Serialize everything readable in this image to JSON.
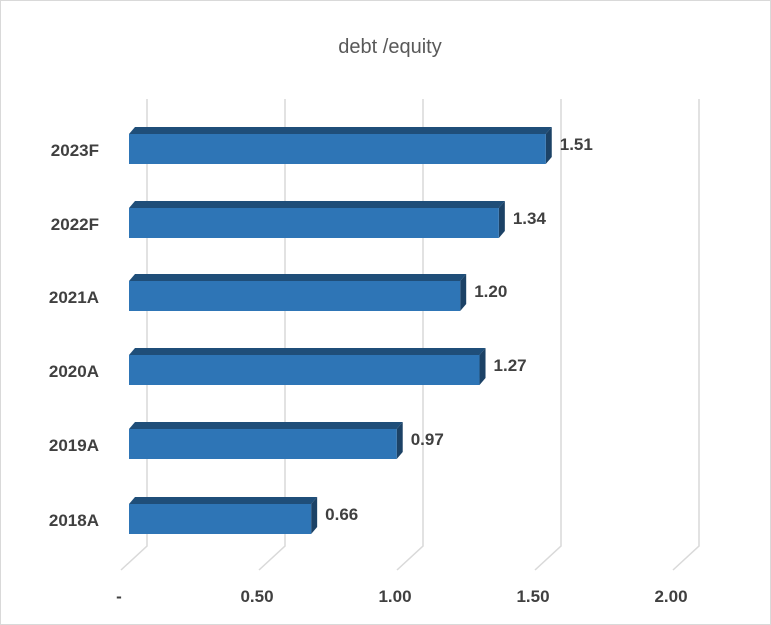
{
  "chart_data": {
    "type": "bar",
    "orientation": "horizontal",
    "title": "debt /equity",
    "categories": [
      "2018A",
      "2019A",
      "2020A",
      "2021A",
      "2022F",
      "2023F"
    ],
    "values": [
      0.66,
      0.97,
      1.27,
      1.2,
      1.34,
      1.51
    ],
    "value_labels": [
      "0.66",
      "0.97",
      "1.27",
      "1.20",
      "1.34",
      "1.51"
    ],
    "xlim": [
      0,
      2
    ],
    "x_ticks": [
      0,
      0.5,
      1.0,
      1.5,
      2.0
    ],
    "x_tick_labels": [
      "-",
      "0.50",
      "1.00",
      "1.50",
      "2.00"
    ],
    "grid": true,
    "legend": "none",
    "bar_color": "#2e75b6",
    "bar_top_color": "#1f4e79",
    "bar_side_color": "#1c4266",
    "grid_color": "#d9d9d9"
  }
}
